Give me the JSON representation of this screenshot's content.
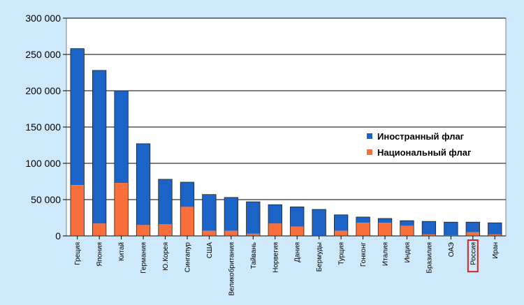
{
  "chart_data": {
    "type": "bar",
    "stacked": true,
    "categories": [
      "Греция",
      "Япония",
      "Китай",
      "Германия",
      "Ю.Корея",
      "Сингапур",
      "США",
      "Великобритания",
      "Тайвань",
      "Норвегия",
      "Дания",
      "Бермуды",
      "Турция",
      "Гонконг",
      "Италия",
      "Индия",
      "Бразилия",
      "ОАЭ",
      "Россия",
      "Иран"
    ],
    "series": [
      {
        "name": "Национальный флаг",
        "color": "#f86f3c",
        "values": [
          70000,
          17000,
          73000,
          15000,
          16000,
          40000,
          7000,
          7000,
          3000,
          17000,
          13000,
          500,
          7000,
          18000,
          18000,
          14000,
          2000,
          1000,
          5000,
          2000
        ]
      },
      {
        "name": "Иностранный флаг",
        "color": "#1b63c6",
        "values": [
          188000,
          211000,
          127000,
          112000,
          62000,
          34000,
          50000,
          46000,
          44000,
          26000,
          27000,
          36000,
          22000,
          8000,
          6000,
          7000,
          18000,
          18000,
          14000,
          16000
        ]
      }
    ],
    "ylim": [
      0,
      300000
    ],
    "yticks": [
      0,
      50000,
      100000,
      150000,
      200000,
      250000,
      300000
    ],
    "ytick_labels": [
      "0",
      "50 000",
      "100 000",
      "150 000",
      "200 000",
      "250 000",
      "300 000"
    ],
    "grid": true,
    "legend": [
      "Иностранный флаг",
      "Национальный флаг"
    ],
    "legend_position": "right",
    "highlighted_category": "Россия",
    "highlight_color": "#e02020"
  }
}
